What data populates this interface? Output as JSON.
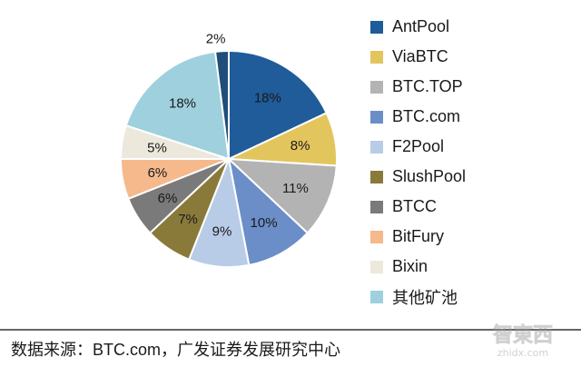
{
  "chart_data": {
    "type": "pie",
    "title": "",
    "slices": [
      {
        "name": "AntPool",
        "value": 18,
        "label": "18%",
        "color": "#1f5c99"
      },
      {
        "name": "ViaBTC",
        "value": 8,
        "label": "8%",
        "color": "#e3c55e"
      },
      {
        "name": "BTC.TOP",
        "value": 11,
        "label": "11%",
        "color": "#b3b3b3"
      },
      {
        "name": "BTC.com",
        "value": 10,
        "label": "10%",
        "color": "#6b8ec9"
      },
      {
        "name": "F2Pool",
        "value": 9,
        "label": "9%",
        "color": "#b8cce8"
      },
      {
        "name": "SlushPool",
        "value": 7,
        "label": "7%",
        "color": "#8a7a3a"
      },
      {
        "name": "BTCC",
        "value": 6,
        "label": "6%",
        "color": "#7a7a7a"
      },
      {
        "name": "BitFury",
        "value": 6,
        "label": "6%",
        "color": "#f5b98c"
      },
      {
        "name": "Bixin",
        "value": 5,
        "label": "5%",
        "color": "#ece8dc"
      },
      {
        "name": "其他矿池",
        "value": 18,
        "label": "18%",
        "color": "#9ed0dd"
      },
      {
        "name": "",
        "value": 2,
        "label": "2%",
        "color": "#1f4e79"
      }
    ],
    "legend_position": "right",
    "legend": [
      "AntPool",
      "ViaBTC",
      "BTC.TOP",
      "BTC.com",
      "F2Pool",
      "SlushPool",
      "BTCC",
      "BitFury",
      "Bixin",
      "其他矿池"
    ]
  },
  "source": "数据来源：BTC.com，广发证券发展研究中心",
  "watermark": {
    "main": "智東西",
    "sub": "zhidx.com"
  }
}
